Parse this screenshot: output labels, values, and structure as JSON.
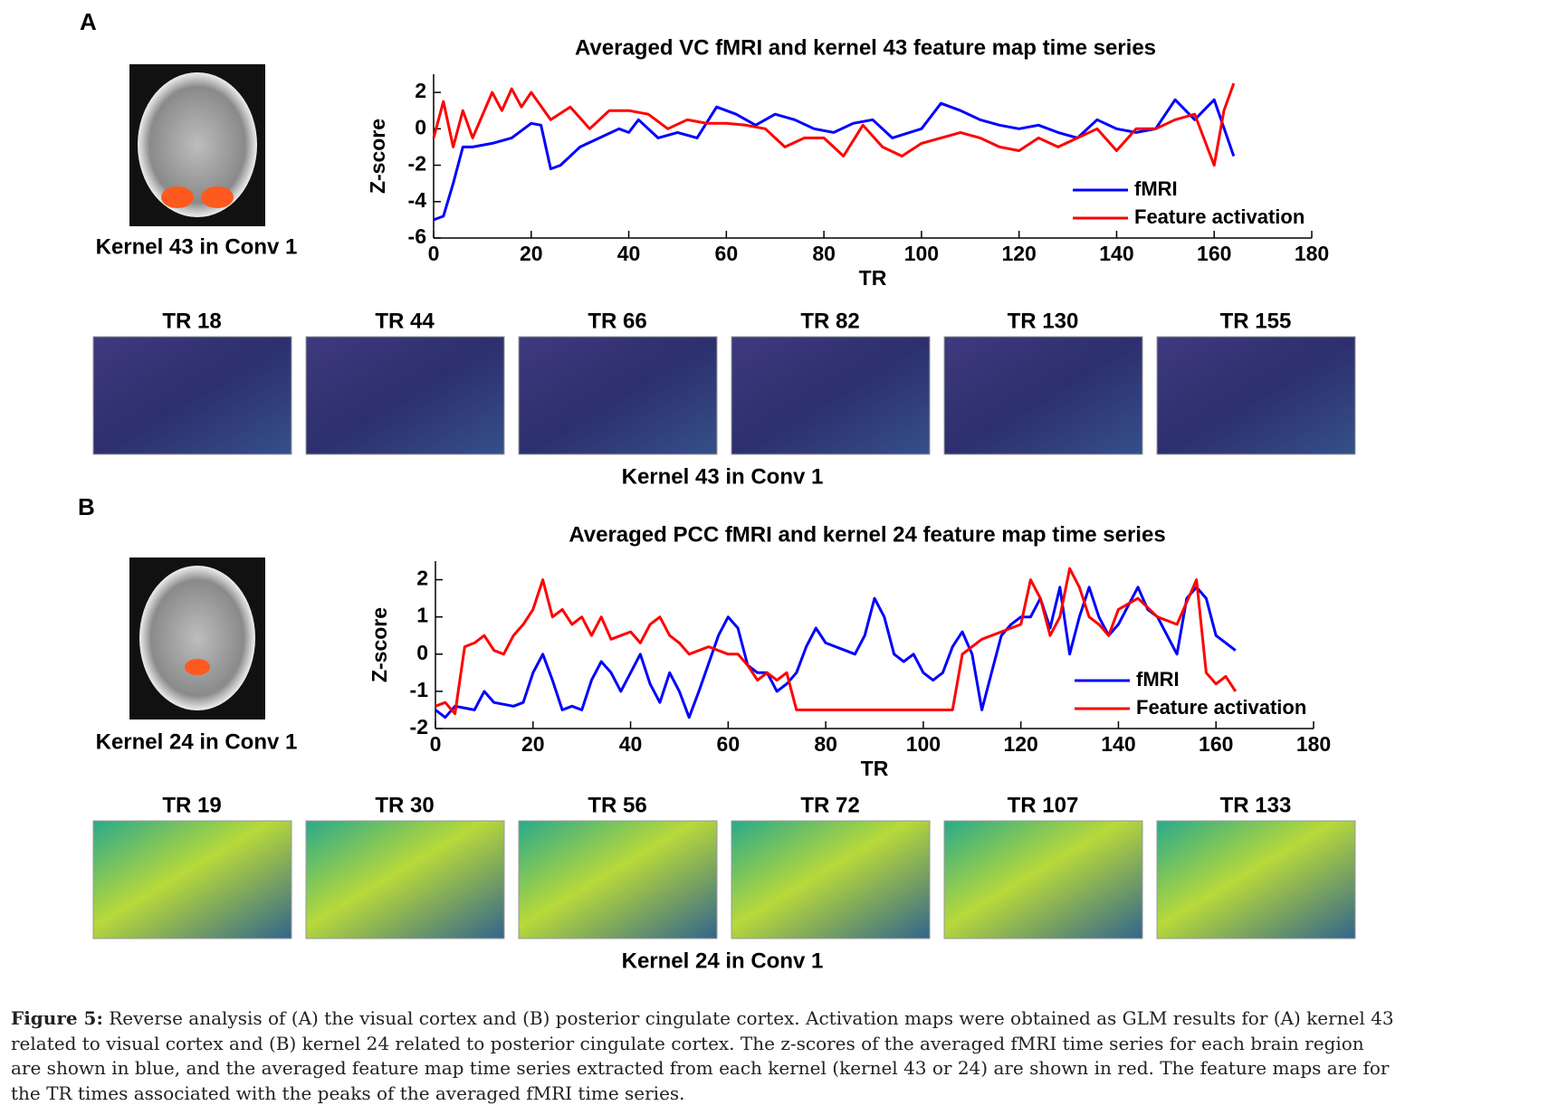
{
  "panel_labels": [
    "A",
    "B"
  ],
  "chart_data": [
    {
      "type": "line",
      "title": "Averaged VC fMRI and kernel 43 feature map time series",
      "xlabel": "TR",
      "ylabel": "Z-score",
      "xlim": [
        0,
        180
      ],
      "xticks": [
        0,
        20,
        40,
        60,
        80,
        100,
        120,
        140,
        160,
        180
      ],
      "ylim": [
        -6,
        3
      ],
      "yticks": [
        -6,
        -4,
        -2,
        0,
        2
      ],
      "legend": "lower right",
      "series": [
        {
          "name": "fMRI",
          "color": "#0000ff",
          "x": [
            0,
            2,
            4,
            6,
            8,
            12,
            16,
            20,
            22,
            24,
            26,
            30,
            34,
            38,
            40,
            42,
            46,
            50,
            54,
            58,
            62,
            66,
            70,
            74,
            78,
            82,
            86,
            90,
            94,
            100,
            104,
            108,
            112,
            116,
            120,
            124,
            128,
            132,
            136,
            140,
            144,
            148,
            152,
            156,
            160,
            164
          ],
          "values": [
            -5,
            -4.8,
            -3,
            -1,
            -1,
            -0.8,
            -0.5,
            0.3,
            0.2,
            -2.2,
            -2,
            -1,
            -0.5,
            0,
            -0.2,
            0.5,
            -0.5,
            -0.2,
            -0.5,
            1.2,
            0.8,
            0.2,
            0.8,
            0.5,
            0,
            -0.2,
            0.3,
            0.5,
            -0.5,
            0,
            1.4,
            1,
            0.5,
            0.2,
            0,
            0.2,
            -0.2,
            -0.5,
            0.5,
            0,
            -0.2,
            0,
            1.6,
            0.5,
            1.6,
            -1.5
          ]
        },
        {
          "name": "Feature activation",
          "color": "#ff0000",
          "x": [
            0,
            2,
            4,
            6,
            8,
            12,
            14,
            16,
            18,
            20,
            24,
            28,
            32,
            36,
            40,
            44,
            48,
            52,
            56,
            60,
            64,
            68,
            72,
            76,
            80,
            84,
            88,
            92,
            96,
            100,
            104,
            108,
            112,
            116,
            120,
            124,
            128,
            132,
            136,
            140,
            144,
            148,
            152,
            156,
            160,
            162,
            164
          ],
          "values": [
            -0.5,
            1.5,
            -1,
            1,
            -0.5,
            2,
            1,
            2.2,
            1.2,
            2,
            0.5,
            1.2,
            0,
            1,
            1,
            0.8,
            0,
            0.5,
            0.3,
            0.3,
            0.2,
            0,
            -1,
            -0.5,
            -0.5,
            -1.5,
            0.2,
            -1,
            -1.5,
            -0.8,
            -0.5,
            -0.2,
            -0.5,
            -1,
            -1.2,
            -0.5,
            -1,
            -0.5,
            0,
            -1.2,
            0,
            0,
            0.5,
            0.8,
            -2,
            1,
            2.5
          ]
        }
      ]
    },
    {
      "type": "line",
      "title": "Averaged PCC fMRI and kernel 24 feature map time series",
      "xlabel": "TR",
      "ylabel": "Z-score",
      "xlim": [
        0,
        180
      ],
      "xticks": [
        0,
        20,
        40,
        60,
        80,
        100,
        120,
        140,
        160,
        180
      ],
      "ylim": [
        -2,
        2.5
      ],
      "yticks": [
        -2,
        -1,
        0,
        1,
        2
      ],
      "legend": "lower right",
      "series": [
        {
          "name": "fMRI",
          "color": "#0000ff",
          "x": [
            0,
            2,
            4,
            8,
            10,
            12,
            16,
            18,
            20,
            22,
            24,
            26,
            28,
            30,
            32,
            34,
            36,
            38,
            40,
            42,
            44,
            46,
            48,
            50,
            52,
            54,
            58,
            60,
            62,
            64,
            66,
            68,
            70,
            72,
            74,
            76,
            78,
            80,
            84,
            86,
            88,
            90,
            92,
            94,
            96,
            98,
            100,
            102,
            104,
            106,
            108,
            110,
            112,
            114,
            116,
            118,
            120,
            122,
            124,
            126,
            128,
            130,
            132,
            134,
            136,
            138,
            140,
            142,
            144,
            146,
            148,
            150,
            152,
            154,
            156,
            158,
            160,
            162,
            164
          ],
          "values": [
            -1.5,
            -1.7,
            -1.4,
            -1.5,
            -1,
            -1.3,
            -1.4,
            -1.3,
            -0.5,
            0,
            -0.7,
            -1.5,
            -1.4,
            -1.5,
            -0.7,
            -0.2,
            -0.5,
            -1,
            -0.5,
            0,
            -0.8,
            -1.3,
            -0.5,
            -1,
            -1.7,
            -1,
            0.5,
            1,
            0.7,
            -0.3,
            -0.5,
            -0.5,
            -1,
            -0.8,
            -0.5,
            0.2,
            0.7,
            0.3,
            0.1,
            0,
            0.5,
            1.5,
            1,
            0,
            -0.2,
            0,
            -0.5,
            -0.7,
            -0.5,
            0.2,
            0.6,
            0,
            -1.5,
            -0.5,
            0.5,
            0.8,
            1,
            1,
            1.5,
            0.7,
            1.8,
            0,
            1,
            1.8,
            1,
            0.5,
            0.8,
            1.3,
            1.8,
            1.2,
            1,
            0.5,
            0,
            1.5,
            1.8,
            1.5,
            0.5,
            0.3,
            0.1
          ]
        },
        {
          "name": "Feature activation",
          "color": "#ff0000",
          "x": [
            0,
            2,
            4,
            6,
            8,
            10,
            12,
            14,
            16,
            18,
            20,
            22,
            24,
            26,
            28,
            30,
            32,
            34,
            36,
            38,
            40,
            42,
            44,
            46,
            48,
            50,
            52,
            56,
            60,
            62,
            64,
            66,
            68,
            70,
            72,
            74,
            80,
            90,
            100,
            106,
            108,
            112,
            116,
            120,
            122,
            124,
            126,
            128,
            130,
            132,
            134,
            136,
            138,
            140,
            144,
            148,
            152,
            156,
            158,
            160,
            162,
            164
          ],
          "values": [
            -1.4,
            -1.3,
            -1.6,
            0.2,
            0.3,
            0.5,
            0.1,
            0,
            0.5,
            0.8,
            1.2,
            2,
            1,
            1.2,
            0.8,
            1,
            0.5,
            1,
            0.4,
            0.5,
            0.6,
            0.3,
            0.8,
            1,
            0.5,
            0.3,
            0,
            0.2,
            0,
            0,
            -0.3,
            -0.7,
            -0.5,
            -0.7,
            -0.5,
            -1.5,
            -1.5,
            -1.5,
            -1.5,
            -1.5,
            0,
            0.4,
            0.6,
            0.8,
            2,
            1.5,
            0.5,
            1,
            2.3,
            1.8,
            1,
            0.8,
            0.5,
            1.2,
            1.5,
            1,
            0.8,
            2,
            -0.5,
            -0.8,
            -0.6,
            -1
          ]
        }
      ]
    }
  ],
  "brain_captions": [
    "Kernel 43 in Conv 1",
    "Kernel 24 in Conv 1"
  ],
  "feature_maps": [
    {
      "labels": [
        "TR 18",
        "TR 44",
        "TR 66",
        "TR 82",
        "TR 130",
        "TR 155"
      ],
      "caption": "Kernel 43 in Conv 1"
    },
    {
      "labels": [
        "TR 19",
        "TR 30",
        "TR 56",
        "TR 72",
        "TR 107",
        "TR 133"
      ],
      "caption": "Kernel 24 in Conv 1"
    }
  ],
  "figure_caption": {
    "label": "Figure 5:",
    "text": "Reverse analysis of (A) the visual cortex and (B) posterior cingulate cortex. Activation maps were obtained as GLM results for (A) kernel 43 related to visual cortex and (B) kernel 24 related to posterior cingulate cortex. The z-scores of the averaged fMRI time series for each brain region are shown in blue, and the averaged feature map time series extracted from each kernel (kernel 43 or 24) are shown in red. The feature maps are for the TR times associated with the peaks of the averaged fMRI time series."
  }
}
